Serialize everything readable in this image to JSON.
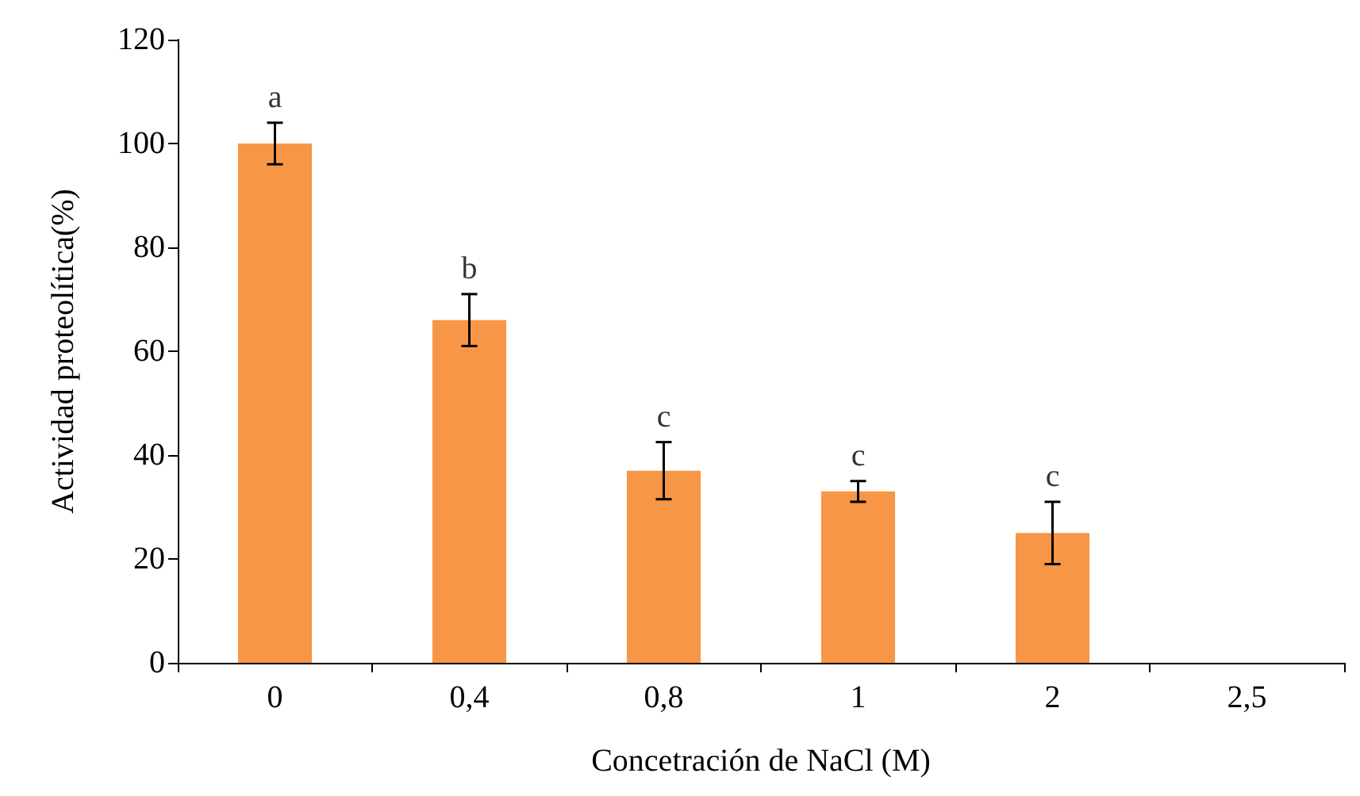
{
  "chart_data": {
    "type": "bar",
    "xlabel": "Concetración de NaCl (M)",
    "ylabel": "Actividad proteolítica(%)",
    "categories": [
      "0",
      "0,4",
      "0,8",
      "1",
      "2",
      "2,5"
    ],
    "values": [
      100,
      66,
      37,
      33,
      25,
      null
    ],
    "errors": [
      4,
      5,
      5.5,
      2,
      6,
      null
    ],
    "color": "#f79646",
    "ylim": [
      0,
      120
    ],
    "yticks": [
      0,
      20,
      40,
      60,
      80,
      100,
      120
    ],
    "annotations": [
      {
        "text": "a",
        "x": "0",
        "y": 104
      },
      {
        "text": "b",
        "x": "0,4",
        "y": 71
      },
      {
        "text": "c",
        "x": "0,8",
        "y": 42.5
      },
      {
        "text": "c",
        "x": "1",
        "y": 35
      },
      {
        "text": "c",
        "x": "2",
        "y": 31
      }
    ]
  }
}
